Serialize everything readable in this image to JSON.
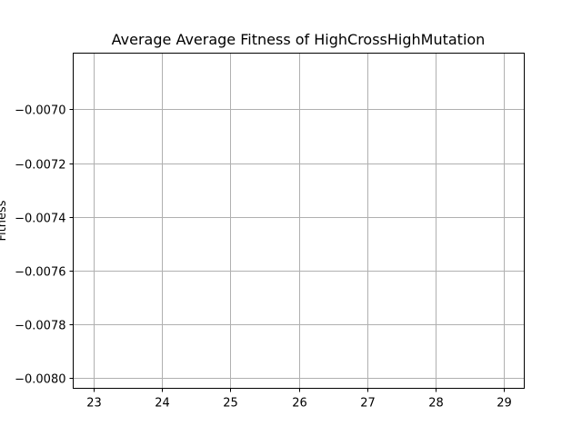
{
  "chart_data": {
    "type": "line",
    "title": "Average Average Fitness of HighCrossHighMutation",
    "xlabel": "",
    "ylabel": "Fitness",
    "xlim": [
      22.7,
      29.3
    ],
    "ylim": [
      -0.00804,
      -0.00679
    ],
    "xticks": [
      23,
      24,
      25,
      26,
      27,
      28,
      29
    ],
    "yticks": [
      -0.007,
      -0.0072,
      -0.0074,
      -0.0076,
      -0.0078,
      -0.008
    ],
    "ytick_labels": [
      "−0.0070",
      "−0.0072",
      "−0.0074",
      "−0.0076",
      "−0.0078",
      "−0.0080"
    ],
    "grid": true,
    "series": [
      {
        "values": []
      }
    ]
  }
}
